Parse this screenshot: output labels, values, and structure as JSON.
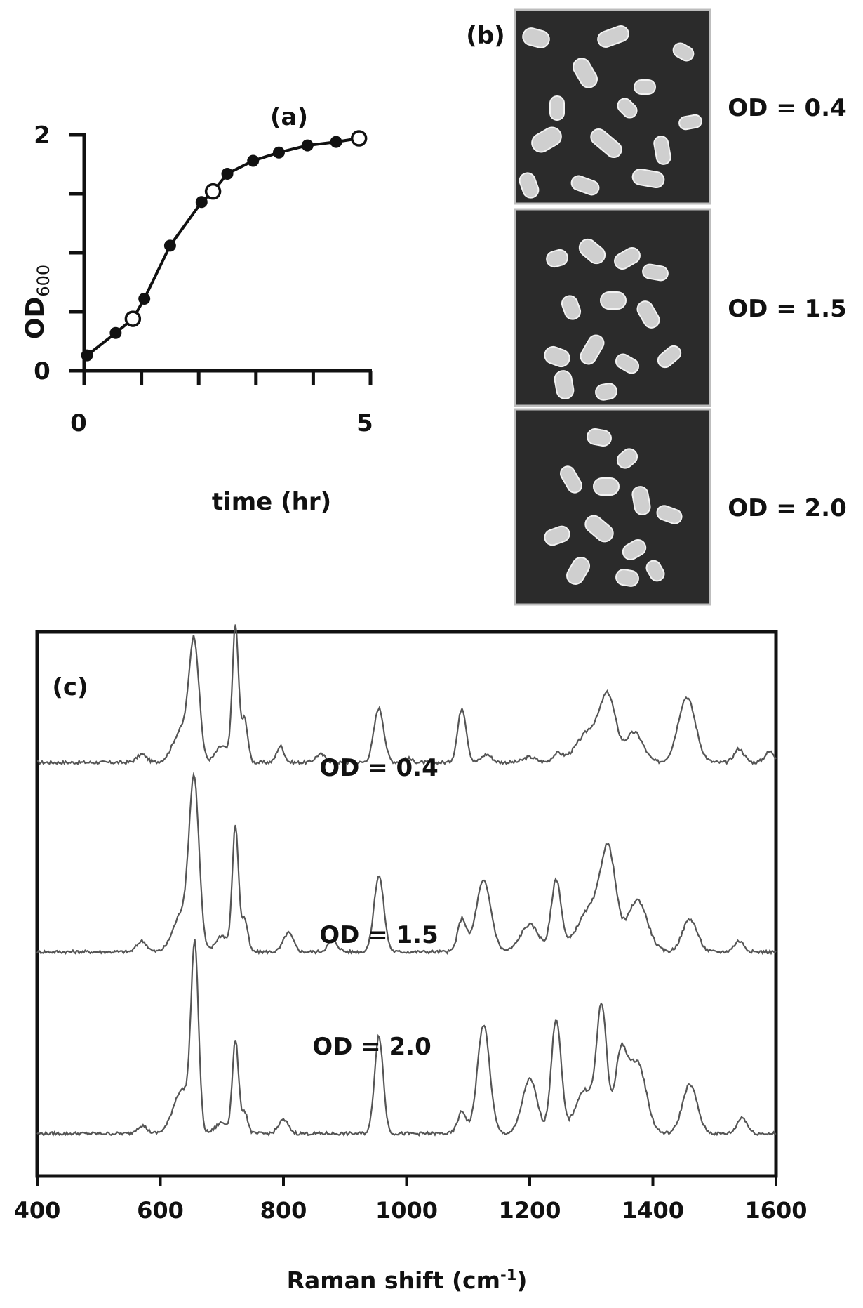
{
  "chart_data": [
    {
      "panel": "(a)",
      "type": "line",
      "xlabel": "time (hr)",
      "ylabel_main": "OD",
      "ylabel_sub": "600",
      "xlim": [
        0,
        5
      ],
      "ylim": [
        0,
        2
      ],
      "x_tick_labels": [
        {
          "v": 0,
          "t": "0"
        },
        {
          "v": 5,
          "t": "5"
        }
      ],
      "y_tick_labels": [
        {
          "v": 0,
          "t": "0"
        },
        {
          "v": 2,
          "t": "2"
        }
      ],
      "x_ticks": [
        0,
        1,
        2,
        3,
        4,
        5
      ],
      "y_ticks": [
        0,
        0.5,
        1,
        1.5,
        2
      ],
      "series": [
        {
          "x": [
            0.05,
            0.55,
            0.85,
            1.05,
            1.5,
            2.05,
            2.25,
            2.5,
            2.95,
            3.4,
            3.9,
            4.4,
            4.8
          ],
          "y": [
            0.13,
            0.32,
            0.44,
            0.61,
            1.06,
            1.43,
            1.52,
            1.67,
            1.78,
            1.85,
            1.91,
            1.94,
            1.97
          ],
          "open": [
            false,
            false,
            true,
            false,
            false,
            false,
            true,
            false,
            false,
            false,
            false,
            false,
            true
          ]
        }
      ]
    },
    {
      "panel": "(c)",
      "type": "line",
      "xlabel": "Raman shift (cm",
      "xlabel_sup": "-1",
      "xlabel_end": ")",
      "xlim": [
        400,
        1600
      ],
      "ylim": [
        0,
        1
      ],
      "x_tick_labels": [
        "400",
        "600",
        "800",
        "1000",
        "1200",
        "1400",
        "1600"
      ],
      "x_ticks": [
        400,
        600,
        800,
        1000,
        1200,
        1400,
        1600
      ],
      "series": [
        {
          "name": "OD = 0.4",
          "baseline": 0.76,
          "color": "#555555",
          "peaks": [
            [
              570,
              0.015,
              8
            ],
            [
              635,
              0.06,
              14
            ],
            [
              655,
              0.21,
              8
            ],
            [
              700,
              0.03,
              10
            ],
            [
              722,
              0.25,
              5
            ],
            [
              737,
              0.08,
              5
            ],
            [
              795,
              0.03,
              6
            ],
            [
              860,
              0.015,
              8
            ],
            [
              955,
              0.1,
              8
            ],
            [
              1000,
              0.008,
              8
            ],
            [
              1090,
              0.1,
              7
            ],
            [
              1130,
              0.015,
              8
            ],
            [
              1200,
              0.01,
              10
            ],
            [
              1245,
              0.015,
              8
            ],
            [
              1300,
              0.06,
              22
            ],
            [
              1328,
              0.1,
              12
            ],
            [
              1370,
              0.055,
              14
            ],
            [
              1455,
              0.12,
              14
            ],
            [
              1540,
              0.025,
              8
            ],
            [
              1590,
              0.02,
              8
            ]
          ]
        },
        {
          "name": "OD = 1.5",
          "baseline": 0.412,
          "color": "#555555",
          "peaks": [
            [
              570,
              0.02,
              8
            ],
            [
              635,
              0.07,
              14
            ],
            [
              655,
              0.3,
              8
            ],
            [
              700,
              0.03,
              10
            ],
            [
              722,
              0.23,
              5
            ],
            [
              737,
              0.06,
              5
            ],
            [
              808,
              0.035,
              8
            ],
            [
              880,
              0.02,
              8
            ],
            [
              955,
              0.14,
              8
            ],
            [
              1090,
              0.06,
              7
            ],
            [
              1125,
              0.13,
              12
            ],
            [
              1200,
              0.05,
              15
            ],
            [
              1243,
              0.13,
              8
            ],
            [
              1300,
              0.08,
              22
            ],
            [
              1328,
              0.16,
              12
            ],
            [
              1375,
              0.095,
              16
            ],
            [
              1460,
              0.06,
              12
            ],
            [
              1540,
              0.02,
              8
            ]
          ]
        },
        {
          "name": "OD = 2.0",
          "baseline": 0.078,
          "color": "#555555",
          "peaks": [
            [
              570,
              0.015,
              8
            ],
            [
              635,
              0.08,
              14
            ],
            [
              656,
              0.33,
              6
            ],
            [
              700,
              0.02,
              10
            ],
            [
              722,
              0.17,
              5
            ],
            [
              737,
              0.04,
              5
            ],
            [
              800,
              0.025,
              8
            ],
            [
              955,
              0.18,
              7
            ],
            [
              1090,
              0.04,
              7
            ],
            [
              1125,
              0.2,
              10
            ],
            [
              1200,
              0.1,
              12
            ],
            [
              1243,
              0.21,
              8
            ],
            [
              1290,
              0.08,
              16
            ],
            [
              1317,
              0.22,
              8
            ],
            [
              1348,
              0.14,
              10
            ],
            [
              1375,
              0.13,
              14
            ],
            [
              1460,
              0.09,
              12
            ],
            [
              1545,
              0.03,
              8
            ]
          ]
        }
      ]
    }
  ],
  "panel_b": {
    "label": "(b)",
    "images": [
      {
        "od_label": "OD = 0.4"
      },
      {
        "od_label": "OD = 1.5"
      },
      {
        "od_label": "OD = 2.0"
      }
    ]
  }
}
